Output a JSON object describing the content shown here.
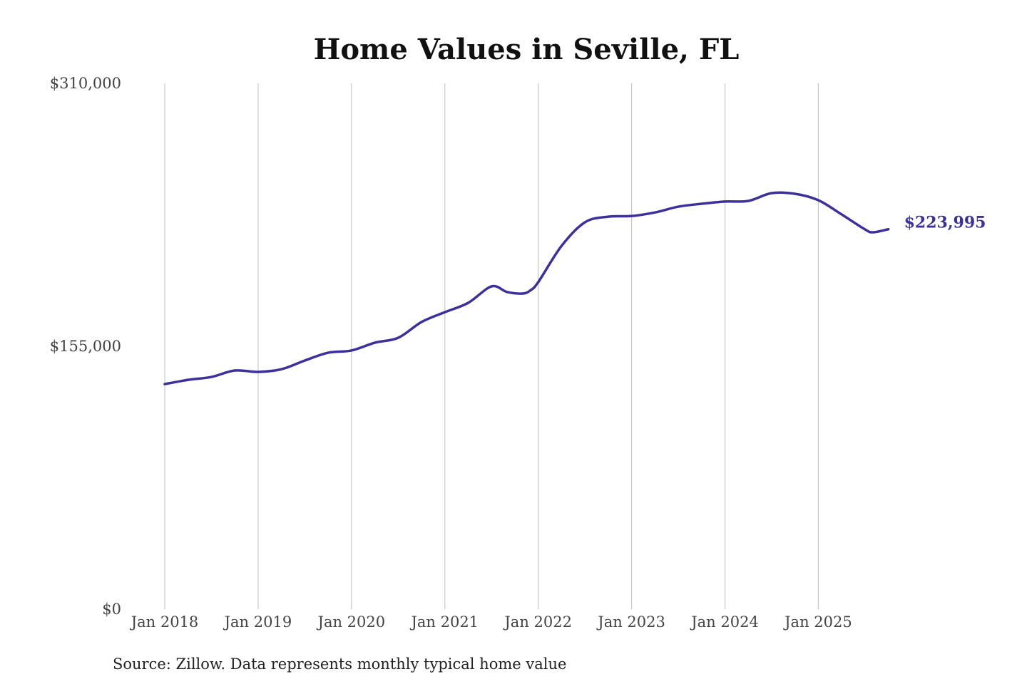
{
  "chart_data": {
    "type": "line",
    "title": "Home Values in Seville, FL",
    "source": "Source: Zillow. Data represents monthly typical home value",
    "xlabel": "",
    "ylabel": "",
    "ylim": [
      0,
      310000
    ],
    "y_ticks": [
      {
        "value": 0,
        "label": "$0"
      },
      {
        "value": 155000,
        "label": "$155,000"
      },
      {
        "value": 310000,
        "label": "$310,000"
      }
    ],
    "x_ticks": [
      {
        "value": "2018-01",
        "label": "Jan 2018"
      },
      {
        "value": "2019-01",
        "label": "Jan 2019"
      },
      {
        "value": "2020-01",
        "label": "Jan 2020"
      },
      {
        "value": "2021-01",
        "label": "Jan 2021"
      },
      {
        "value": "2022-01",
        "label": "Jan 2022"
      },
      {
        "value": "2023-01",
        "label": "Jan 2023"
      },
      {
        "value": "2024-01",
        "label": "Jan 2024"
      },
      {
        "value": "2025-01",
        "label": "Jan 2025"
      }
    ],
    "grid": "vertical",
    "line_color": "#3b309c",
    "end_label": "$223,995",
    "series": [
      {
        "x": [
          "2018-01",
          "2018-04",
          "2018-07",
          "2018-10",
          "2019-01",
          "2019-04",
          "2019-07",
          "2019-10",
          "2020-01",
          "2020-04",
          "2020-07",
          "2020-10",
          "2021-01",
          "2021-04",
          "2021-07",
          "2021-09",
          "2021-11",
          "2021-12",
          "2022-01",
          "2022-04",
          "2022-07",
          "2022-10",
          "2023-01",
          "2023-04",
          "2023-07",
          "2023-10",
          "2024-01",
          "2024-04",
          "2024-07",
          "2024-10",
          "2025-01",
          "2025-04",
          "2025-07",
          "2025-08",
          "2025-10"
        ],
        "values": [
          132700,
          135200,
          136900,
          140700,
          139900,
          141500,
          146600,
          151200,
          152500,
          157100,
          160000,
          169300,
          175100,
          180600,
          190300,
          187000,
          186100,
          188000,
          192800,
          214200,
          228100,
          231400,
          231800,
          233900,
          237300,
          239000,
          240300,
          240700,
          245300,
          244900,
          241100,
          232700,
          223900,
          222200,
          223995
        ]
      }
    ]
  }
}
